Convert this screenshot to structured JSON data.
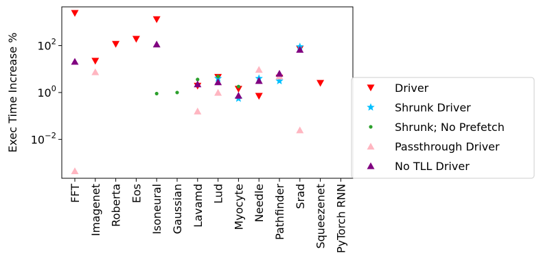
{
  "chart_data": {
    "type": "scatter",
    "title": "",
    "xlabel": "",
    "ylabel": "Exec Time Increase %",
    "yscale": "log",
    "ylim": [
      0.00022,
      4500
    ],
    "yticks": [
      {
        "value": 0.01,
        "base": "10",
        "exp": "−2"
      },
      {
        "value": 1,
        "base": "10",
        "exp": "0"
      },
      {
        "value": 100,
        "base": "10",
        "exp": "2"
      }
    ],
    "categories": [
      "FFT",
      "Imagenet",
      "Roberta",
      "Eos",
      "Isoneural",
      "Gaussian",
      "Lavamd",
      "Lud",
      "Myocyte",
      "Needle",
      "Pathfinder",
      "Srad",
      "Squeezenet",
      "PyTorch RNN"
    ],
    "grid": false,
    "legend_position": "right",
    "series": [
      {
        "name": "Driver",
        "marker": "triangle-down",
        "color": "#ff0000",
        "values": [
          2400,
          22,
          115,
          190,
          1300,
          null,
          1.9,
          4.5,
          1.4,
          0.7,
          4.2,
          72,
          2.5,
          null
        ]
      },
      {
        "name": "Shrunk Driver",
        "marker": "star",
        "color": "#00bfff",
        "values": [
          null,
          null,
          null,
          null,
          null,
          null,
          null,
          4.0,
          0.55,
          4.0,
          3.1,
          90,
          null,
          null
        ]
      },
      {
        "name": "Shrunk; No Prefetch",
        "marker": "circle",
        "color": "#2ca02c",
        "values": [
          null,
          null,
          null,
          null,
          0.9,
          1.0,
          3.6,
          4.8,
          1.8,
          null,
          null,
          null,
          null,
          null
        ]
      },
      {
        "name": "Passthrough Driver",
        "marker": "triangle-up",
        "color": "#ffb6c1",
        "values": [
          0.00045,
          7.5,
          null,
          null,
          null,
          null,
          0.16,
          1.0,
          null,
          9.5,
          5.0,
          0.025,
          null,
          null
        ]
      },
      {
        "name": "No TLL Driver",
        "marker": "triangle-up",
        "color": "#800080",
        "values": [
          21,
          null,
          null,
          null,
          115,
          null,
          2.3,
          2.8,
          0.75,
          3.2,
          6.5,
          68,
          null,
          null
        ]
      }
    ]
  }
}
